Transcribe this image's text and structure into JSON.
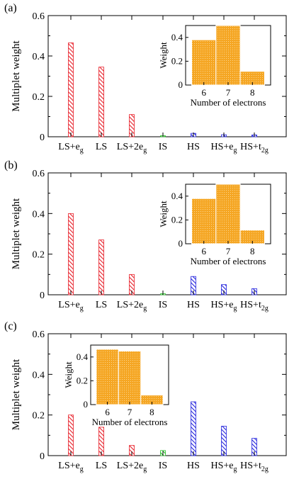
{
  "chart_data": [
    {
      "panel_label": "(a)",
      "type": "bar",
      "ylabel": "Multiplet weight",
      "ylim": [
        0,
        0.6
      ],
      "yticks": [
        "0",
        "0.2",
        "0.4",
        "0.6"
      ],
      "categories": [
        {
          "base": "LS+e",
          "sub": "g"
        },
        {
          "base": "LS",
          "sub": ""
        },
        {
          "base": "LS+2e",
          "sub": "g"
        },
        {
          "base": "IS",
          "sub": ""
        },
        {
          "base": "HS",
          "sub": ""
        },
        {
          "base": "HS+e",
          "sub": "g"
        },
        {
          "base": "HS+t",
          "sub": "2g"
        }
      ],
      "values": [
        0.465,
        0.345,
        0.11,
        0.005,
        0.017,
        0.01,
        0.009
      ],
      "bar_colors": [
        "#e8202a",
        "#e8202a",
        "#e8202a",
        "#22bb22",
        "#2222dd",
        "#2222dd",
        "#2222dd"
      ],
      "inset": {
        "type": "bar",
        "xlabel": "Number of electrons",
        "ylabel": "Weight",
        "categories": [
          "6",
          "7",
          "8"
        ],
        "values": [
          0.38,
          0.5,
          0.115
        ],
        "ylim": [
          0,
          0.5
        ],
        "yticks": [
          "0",
          "0.2",
          "0.4"
        ],
        "color": "#f5a623"
      }
    },
    {
      "panel_label": "(b)",
      "type": "bar",
      "ylabel": "Multiplet weight",
      "ylim": [
        0,
        0.6
      ],
      "yticks": [
        "0",
        "0.2",
        "0.4",
        "0.6"
      ],
      "categories": [
        {
          "base": "LS+e",
          "sub": "g"
        },
        {
          "base": "LS",
          "sub": ""
        },
        {
          "base": "LS+2e",
          "sub": "g"
        },
        {
          "base": "IS",
          "sub": ""
        },
        {
          "base": "HS",
          "sub": ""
        },
        {
          "base": "HS+e",
          "sub": "g"
        },
        {
          "base": "HS+t",
          "sub": "2g"
        }
      ],
      "values": [
        0.4,
        0.27,
        0.1,
        0.005,
        0.09,
        0.05,
        0.03
      ],
      "bar_colors": [
        "#e8202a",
        "#e8202a",
        "#e8202a",
        "#22bb22",
        "#2222dd",
        "#2222dd",
        "#2222dd"
      ],
      "inset": {
        "type": "bar",
        "xlabel": "Number of electrons",
        "ylabel": "Weight",
        "categories": [
          "6",
          "7",
          "8"
        ],
        "values": [
          0.38,
          0.5,
          0.115
        ],
        "ylim": [
          0,
          0.5
        ],
        "yticks": [
          "0",
          "0.2",
          "0.4"
        ],
        "color": "#f5a623"
      }
    },
    {
      "panel_label": "(c)",
      "type": "bar",
      "ylabel": "Multiplet weight",
      "ylim": [
        0,
        0.6
      ],
      "yticks": [
        "0",
        "0.2",
        "0.4",
        "0.6"
      ],
      "categories": [
        {
          "base": "LS+e",
          "sub": "g"
        },
        {
          "base": "LS",
          "sub": ""
        },
        {
          "base": "LS+2e",
          "sub": "g"
        },
        {
          "base": "IS",
          "sub": ""
        },
        {
          "base": "HS",
          "sub": ""
        },
        {
          "base": "HS+e",
          "sub": "g"
        },
        {
          "base": "HS+t",
          "sub": "2g"
        }
      ],
      "values": [
        0.2,
        0.14,
        0.05,
        0.025,
        0.265,
        0.145,
        0.085
      ],
      "bar_colors": [
        "#e8202a",
        "#e8202a",
        "#e8202a",
        "#22bb22",
        "#2222dd",
        "#2222dd",
        "#2222dd"
      ],
      "inset": {
        "type": "bar",
        "xlabel": "Number of electrons",
        "ylabel": "Weight",
        "categories": [
          "6",
          "7",
          "8"
        ],
        "values": [
          0.465,
          0.45,
          0.08
        ],
        "ylim": [
          0,
          0.5
        ],
        "yticks": [
          "0",
          "0.2",
          "0.4"
        ],
        "color": "#f5a623"
      }
    }
  ]
}
